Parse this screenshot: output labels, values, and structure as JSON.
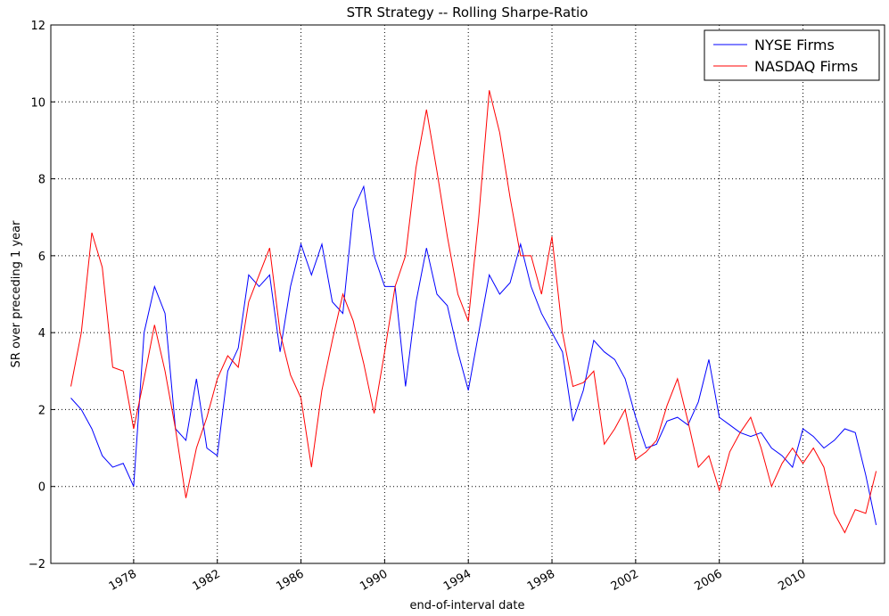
{
  "chart_data": {
    "type": "line",
    "title": "STR Strategy -- Rolling Sharpe-Ratio",
    "x_label": "end-of-interval date",
    "y_label": "SR over preceding 1 year",
    "x": [
      1975.0,
      1975.5,
      1976.0,
      1976.5,
      1977.0,
      1977.5,
      1978.0,
      1978.5,
      1979.0,
      1979.5,
      1980.0,
      1980.5,
      1981.0,
      1981.5,
      1982.0,
      1982.5,
      1983.0,
      1983.5,
      1984.0,
      1984.5,
      1985.0,
      1985.5,
      1986.0,
      1986.5,
      1987.0,
      1987.5,
      1988.0,
      1988.5,
      1989.0,
      1989.5,
      1990.0,
      1990.5,
      1991.0,
      1991.5,
      1992.0,
      1992.5,
      1993.0,
      1993.5,
      1994.0,
      1994.5,
      1995.0,
      1995.5,
      1996.0,
      1996.5,
      1997.0,
      1997.5,
      1998.0,
      1998.5,
      1999.0,
      1999.5,
      2000.0,
      2000.5,
      2001.0,
      2001.5,
      2002.0,
      2002.5,
      2003.0,
      2003.5,
      2004.0,
      2004.5,
      2005.0,
      2005.5,
      2006.0,
      2006.5,
      2007.0,
      2007.5,
      2008.0,
      2008.5,
      2009.0,
      2009.5,
      2010.0,
      2010.5,
      2011.0,
      2011.5,
      2012.0,
      2012.5,
      2013.0,
      2013.5
    ],
    "series": [
      {
        "name": "NYSE Firms",
        "color": "#0000ff",
        "values": [
          2.3,
          2.0,
          1.5,
          0.8,
          0.5,
          0.6,
          0.0,
          4.0,
          5.2,
          4.5,
          1.5,
          1.2,
          2.8,
          1.0,
          0.8,
          3.0,
          3.6,
          5.5,
          5.2,
          5.5,
          3.5,
          5.2,
          6.3,
          5.5,
          6.3,
          4.8,
          4.5,
          7.2,
          7.8,
          6.0,
          5.2,
          5.2,
          2.6,
          4.8,
          6.2,
          5.0,
          4.7,
          3.5,
          2.5,
          4.0,
          5.5,
          5.0,
          5.3,
          6.3,
          5.2,
          4.5,
          4.0,
          3.5,
          1.7,
          2.5,
          3.8,
          3.5,
          3.3,
          2.8,
          1.8,
          1.0,
          1.1,
          1.7,
          1.8,
          1.6,
          2.2,
          3.3,
          1.8,
          1.6,
          1.4,
          1.3,
          1.4,
          1.0,
          0.8,
          0.5,
          1.5,
          1.3,
          1.0,
          1.2,
          1.5,
          1.4,
          0.3,
          -1.0
        ]
      },
      {
        "name": "NASDAQ Firms",
        "color": "#ff0000",
        "values": [
          2.6,
          4.0,
          6.6,
          5.7,
          3.1,
          3.0,
          1.5,
          2.8,
          4.2,
          3.0,
          1.5,
          -0.3,
          1.0,
          1.8,
          2.8,
          3.4,
          3.1,
          4.8,
          5.5,
          6.2,
          4.0,
          2.9,
          2.3,
          0.5,
          2.5,
          3.8,
          5.0,
          4.3,
          3.2,
          1.9,
          3.5,
          5.2,
          6.0,
          8.3,
          9.8,
          8.2,
          6.5,
          5.0,
          4.3,
          7.0,
          10.3,
          9.2,
          7.5,
          6.0,
          6.0,
          5.0,
          6.5,
          4.0,
          2.6,
          2.7,
          3.0,
          1.1,
          1.5,
          2.0,
          0.7,
          0.9,
          1.2,
          2.1,
          2.8,
          1.7,
          0.5,
          0.8,
          -0.1,
          0.9,
          1.4,
          1.8,
          1.0,
          0.0,
          0.6,
          1.0,
          0.6,
          1.0,
          0.5,
          -0.7,
          -1.2,
          -0.6,
          -0.7,
          0.4
        ]
      }
    ],
    "xlim": [
      1974.04,
      2013.9
    ],
    "xticks": [
      1978,
      1982,
      1986,
      1990,
      1994,
      1998,
      2002,
      2006,
      2010
    ],
    "ylim": [
      -2,
      12
    ],
    "yticks": [
      {
        "value": -2,
        "label": "−2"
      },
      0,
      2,
      4,
      6,
      8,
      10,
      12
    ],
    "grid": true,
    "legend": "upper right"
  }
}
